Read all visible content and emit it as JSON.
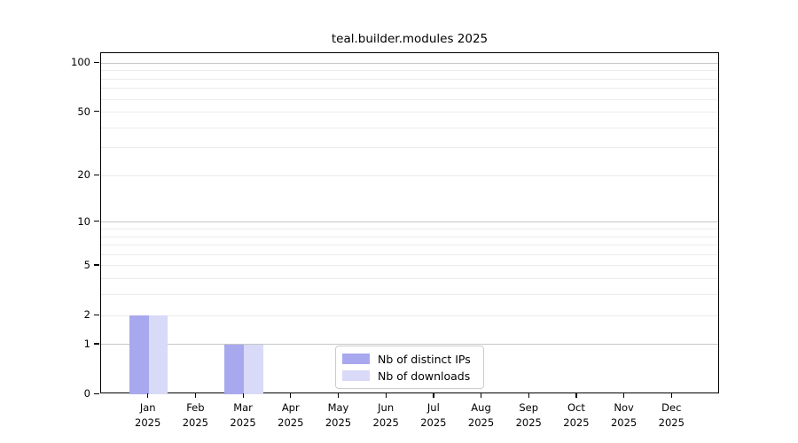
{
  "chart_data": {
    "type": "bar",
    "title": "teal.builder.modules 2025",
    "categories": [
      "Jan",
      "Feb",
      "Mar",
      "Apr",
      "May",
      "Jun",
      "Jul",
      "Aug",
      "Sep",
      "Oct",
      "Nov",
      "Dec"
    ],
    "year_label": "2025",
    "series": [
      {
        "name": "Nb of distinct IPs",
        "color": "#a8a8ee",
        "values": [
          2,
          0,
          1,
          0,
          0,
          0,
          0,
          0,
          0,
          0,
          0,
          0
        ]
      },
      {
        "name": "Nb of downloads",
        "color": "#d9d9f8",
        "values": [
          2,
          0,
          1,
          0,
          0,
          0,
          0,
          0,
          0,
          0,
          0,
          0
        ]
      }
    ],
    "xlabel": "",
    "ylabel": "",
    "y_scale": "log1p",
    "y_max": 115,
    "y_ticks": [
      0,
      1,
      2,
      5,
      10,
      20,
      50,
      100
    ],
    "y_tick_labels": [
      "0",
      "1",
      "2",
      "5",
      "10",
      "20",
      "50",
      "100"
    ],
    "grid_minor_values": [
      1,
      2,
      3,
      4,
      5,
      6,
      7,
      8,
      9,
      10,
      20,
      30,
      40,
      50,
      60,
      70,
      80,
      90,
      100
    ],
    "grid_major_values": [
      1,
      10,
      100
    ],
    "grid": true,
    "legend_position": "bottom-center",
    "colors": {
      "axis": "#000000",
      "minor_grid": "#ececec",
      "major_grid": "#c6c6c6",
      "background": "#ffffff"
    }
  }
}
